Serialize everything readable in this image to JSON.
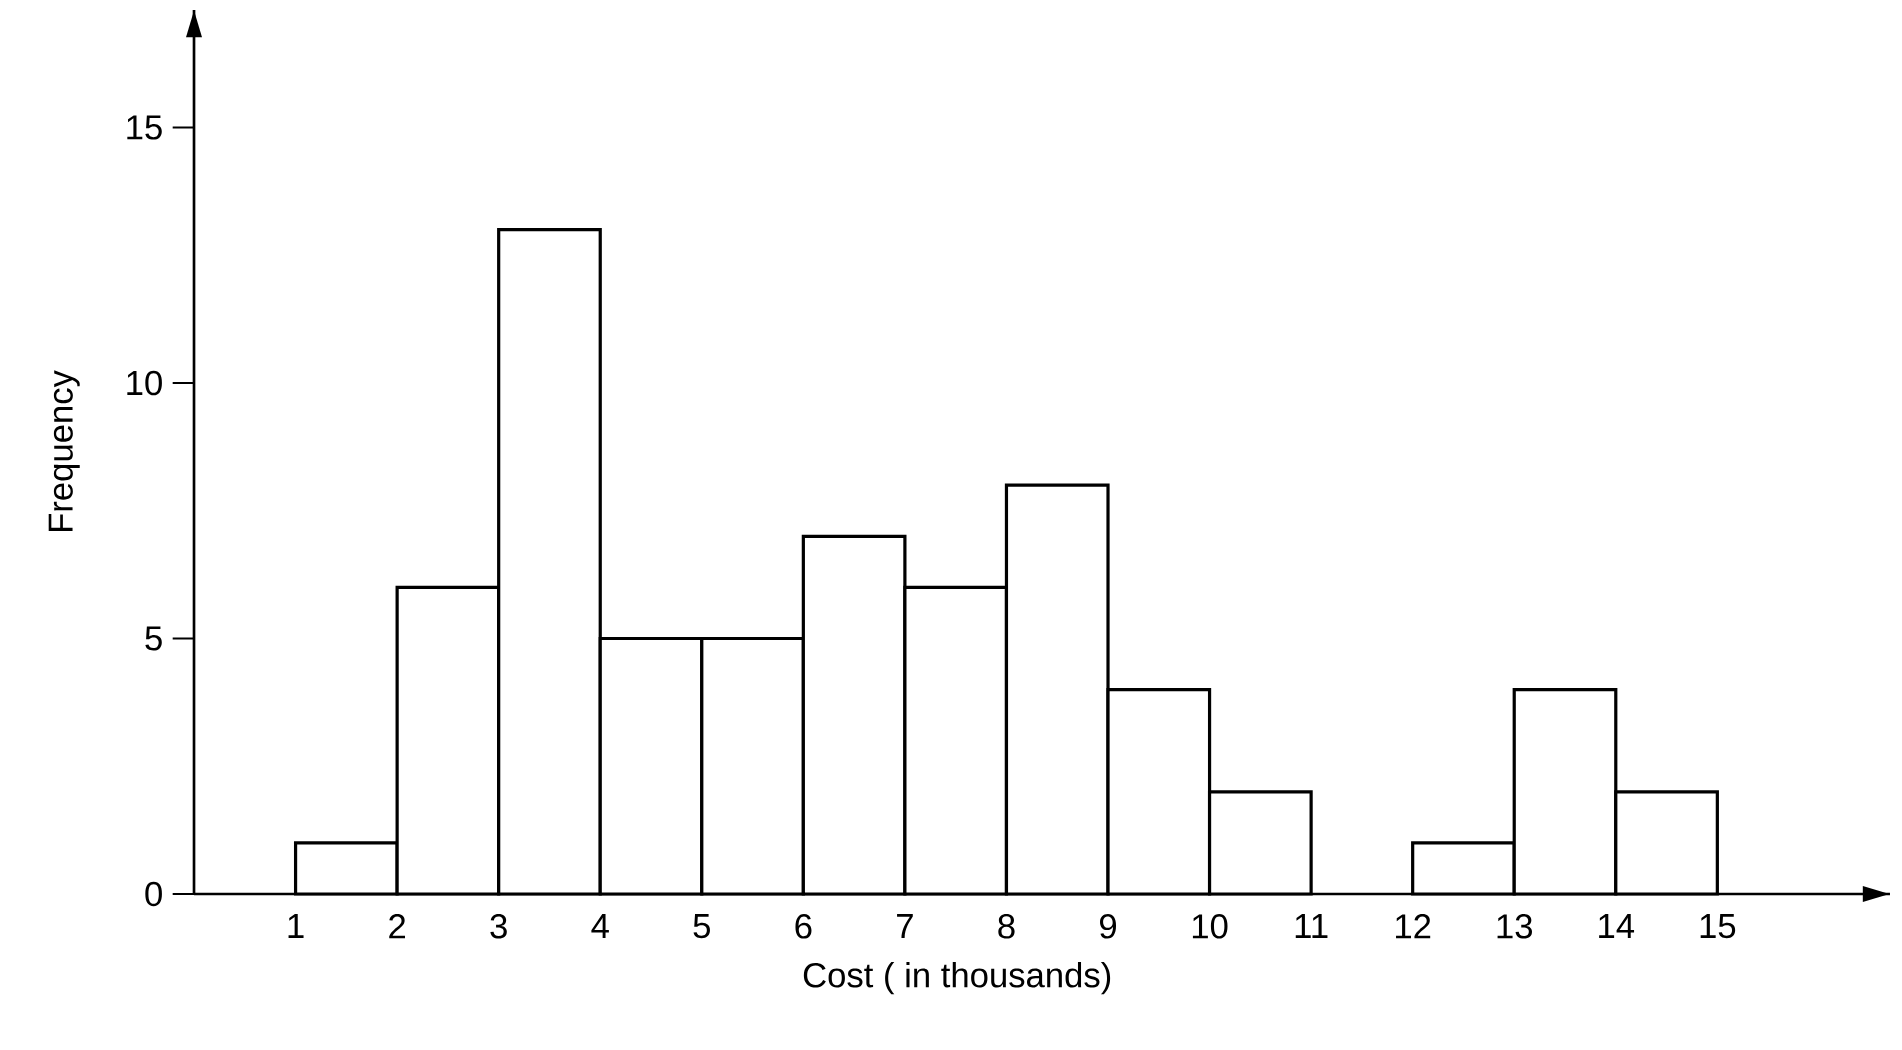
{
  "chart_data": {
    "type": "histogram",
    "xlabel": "Cost ( in thousands)",
    "ylabel": "Frequency",
    "bins": [
      1,
      2,
      3,
      4,
      5,
      6,
      7,
      8,
      9,
      10,
      11,
      12,
      13,
      14,
      15
    ],
    "values": [
      1,
      6,
      13,
      5,
      5,
      7,
      6,
      8,
      4,
      2,
      0,
      1,
      4,
      2
    ],
    "color": "#ffffff",
    "xlim": [
      0,
      16.7
    ],
    "ylim": [
      0,
      17.3
    ],
    "xticks": [
      1,
      2,
      3,
      4,
      5,
      6,
      7,
      8,
      9,
      10,
      11,
      12,
      13,
      14,
      15
    ],
    "yticks": [
      0,
      5,
      10,
      15
    ]
  }
}
